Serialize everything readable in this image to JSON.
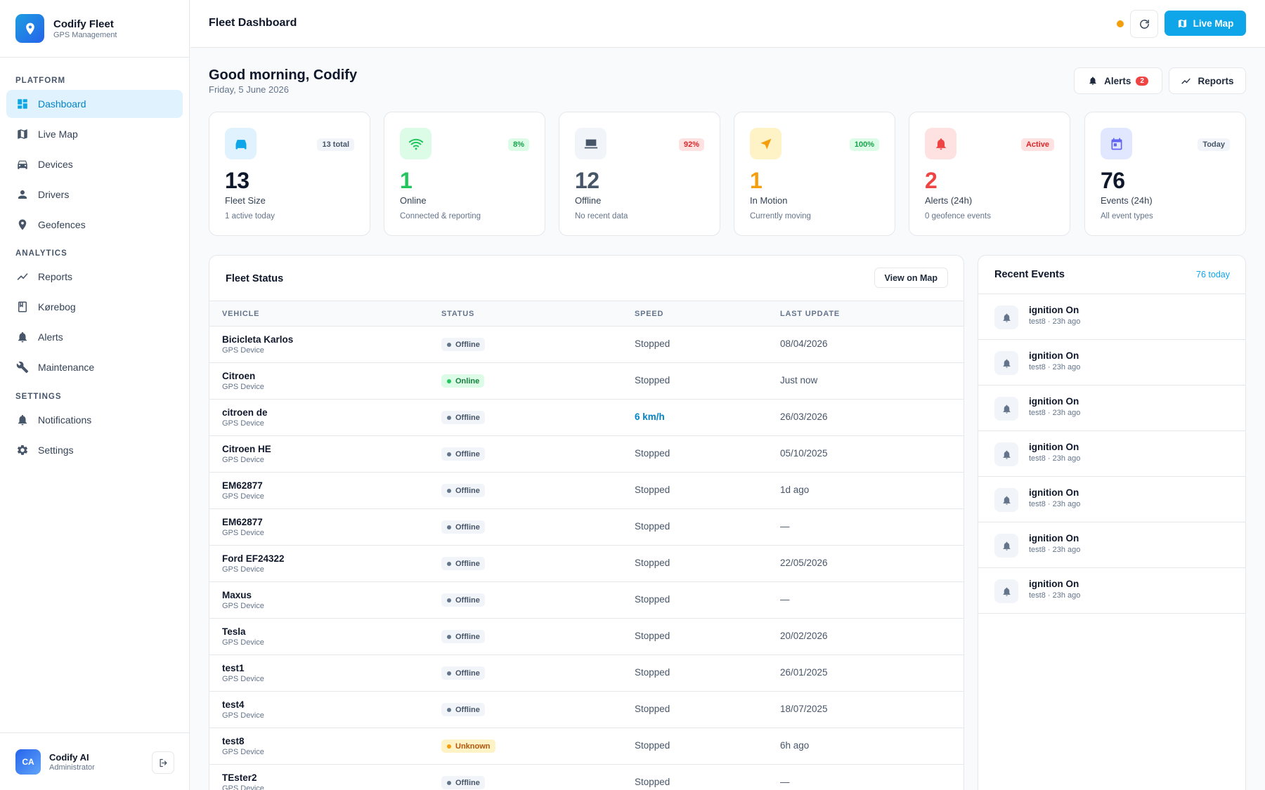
{
  "brand": {
    "name": "Codify Fleet",
    "subtitle": "GPS Management"
  },
  "nav": {
    "platform_label": "PLATFORM",
    "analytics_label": "ANALYTICS",
    "settings_label": "SETTINGS",
    "items": [
      {
        "label": "Dashboard",
        "icon": "dashboard-icon",
        "active": true
      },
      {
        "label": "Live Map",
        "icon": "map-icon"
      },
      {
        "label": "Devices",
        "icon": "car-icon"
      },
      {
        "label": "Drivers",
        "icon": "person-icon"
      },
      {
        "label": "Geofences",
        "icon": "location-pin-icon"
      },
      {
        "label": "Reports",
        "icon": "trend-icon"
      },
      {
        "label": "Kørebog",
        "icon": "book-icon"
      },
      {
        "label": "Alerts",
        "icon": "bell-icon"
      },
      {
        "label": "Maintenance",
        "icon": "wrench-icon"
      },
      {
        "label": "Notifications",
        "icon": "bell-icon"
      },
      {
        "label": "Settings",
        "icon": "gear-icon"
      }
    ]
  },
  "user": {
    "initials": "CA",
    "name": "Codify AI",
    "role": "Administrator"
  },
  "header": {
    "title": "Fleet Dashboard",
    "live_map_label": "Live Map",
    "status_color": "#f59e0b"
  },
  "welcome": {
    "greeting": "Good morning, Codify",
    "date": "Friday, 5 June 2026",
    "alerts_label": "Alerts",
    "alerts_count": "2",
    "reports_label": "Reports"
  },
  "stats": [
    {
      "value": "13",
      "label": "Fleet Size",
      "sub": "1 active today",
      "badge": "13 total",
      "icon": "car-icon",
      "color": "#0f172a",
      "accent": "#0ea5e9"
    },
    {
      "value": "1",
      "label": "Online",
      "sub": "Connected & reporting",
      "badge": "8%",
      "icon": "wifi-icon",
      "color": "#22c55e",
      "accent": "#22c55e"
    },
    {
      "value": "12",
      "label": "Offline",
      "sub": "No recent data",
      "badge": "92%",
      "icon": "laptop-icon",
      "color": "#475569",
      "accent": "#475569"
    },
    {
      "value": "1",
      "label": "In Motion",
      "sub": "Currently moving",
      "badge": "100%",
      "icon": "navigation-icon",
      "color": "#f59e0b",
      "accent": "#f59e0b"
    },
    {
      "value": "2",
      "label": "Alerts (24h)",
      "sub": "0 geofence events",
      "badge": "Active",
      "icon": "bell-icon",
      "color": "#ef4444",
      "accent": "#ef4444"
    },
    {
      "value": "76",
      "label": "Events (24h)",
      "sub": "All event types",
      "badge": "Today",
      "icon": "calendar-icon",
      "color": "#0f172a",
      "accent": "#6366f1"
    }
  ],
  "fleet": {
    "title": "Fleet Status",
    "view_map_label": "View on Map",
    "columns": [
      "VEHICLE",
      "STATUS",
      "SPEED",
      "LAST UPDATE"
    ],
    "rows": [
      {
        "name": "Bicicleta Karlos",
        "type": "GPS Device",
        "status": "Offline",
        "speed": "Stopped",
        "last": "08/04/2026"
      },
      {
        "name": "Citroen",
        "type": "GPS Device",
        "status": "Online",
        "speed": "Stopped",
        "last": "Just now"
      },
      {
        "name": "citroen de",
        "type": "GPS Device",
        "status": "Offline",
        "speed": "6 km/h",
        "last": "26/03/2026"
      },
      {
        "name": "Citroen HE",
        "type": "GPS Device",
        "status": "Offline",
        "speed": "Stopped",
        "last": "05/10/2025"
      },
      {
        "name": "EM62877",
        "type": "GPS Device",
        "status": "Offline",
        "speed": "Stopped",
        "last": "1d ago"
      },
      {
        "name": "EM62877",
        "type": "GPS Device",
        "status": "Offline",
        "speed": "Stopped",
        "last": "—"
      },
      {
        "name": "Ford EF24322",
        "type": "GPS Device",
        "status": "Offline",
        "speed": "Stopped",
        "last": "22/05/2026"
      },
      {
        "name": "Maxus",
        "type": "GPS Device",
        "status": "Offline",
        "speed": "Stopped",
        "last": "—"
      },
      {
        "name": "Tesla",
        "type": "GPS Device",
        "status": "Offline",
        "speed": "Stopped",
        "last": "20/02/2026"
      },
      {
        "name": "test1",
        "type": "GPS Device",
        "status": "Offline",
        "speed": "Stopped",
        "last": "26/01/2025"
      },
      {
        "name": "test4",
        "type": "GPS Device",
        "status": "Offline",
        "speed": "Stopped",
        "last": "18/07/2025"
      },
      {
        "name": "test8",
        "type": "GPS Device",
        "status": "Unknown",
        "speed": "Stopped",
        "last": "6h ago"
      },
      {
        "name": "TEster2",
        "type": "GPS Device",
        "status": "Offline",
        "speed": "Stopped",
        "last": "—"
      }
    ]
  },
  "events": {
    "title": "Recent Events",
    "count": "76 today",
    "items": [
      {
        "name": "ignition On",
        "meta": "test8 · 23h ago"
      },
      {
        "name": "ignition On",
        "meta": "test8 · 23h ago"
      },
      {
        "name": "ignition On",
        "meta": "test8 · 23h ago"
      },
      {
        "name": "ignition On",
        "meta": "test8 · 23h ago"
      },
      {
        "name": "ignition On",
        "meta": "test8 · 23h ago"
      },
      {
        "name": "ignition On",
        "meta": "test8 · 23h ago"
      },
      {
        "name": "ignition On",
        "meta": "test8 · 23h ago"
      }
    ]
  }
}
